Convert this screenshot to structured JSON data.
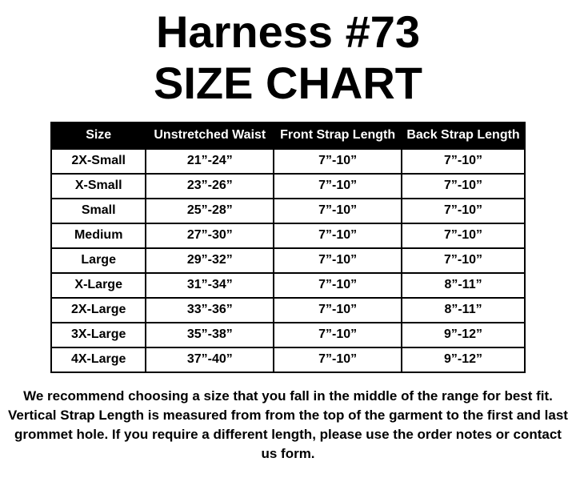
{
  "page": {
    "background_color": "#ffffff",
    "text_color": "#000000"
  },
  "title": {
    "line1": "Harness #73",
    "line2": "SIZE CHART"
  },
  "size_chart": {
    "header_bg_color": "#000000",
    "header_text_color": "#ffffff",
    "border_color": "#000000",
    "columns": [
      "Size",
      "Unstretched Waist",
      "Front Strap Length",
      "Back Strap Length"
    ],
    "rows": [
      [
        "2X-Small",
        "21”-24”",
        "7”-10”",
        "7”-10”"
      ],
      [
        "X-Small",
        "23”-26”",
        "7”-10”",
        "7”-10”"
      ],
      [
        "Small",
        "25”-28”",
        "7”-10”",
        "7”-10”"
      ],
      [
        "Medium",
        "27”-30”",
        "7”-10”",
        "7”-10”"
      ],
      [
        "Large",
        "29”-32”",
        "7”-10”",
        "7”-10”"
      ],
      [
        "X-Large",
        "31”-34”",
        "7”-10”",
        "8”-11”"
      ],
      [
        "2X-Large",
        "33”-36”",
        "7”-10”",
        "8”-11”"
      ],
      [
        "3X-Large",
        "35”-38”",
        "7”-10”",
        "9”-12”"
      ],
      [
        "4X-Large",
        "37”-40”",
        "7”-10”",
        "9”-12”"
      ]
    ]
  },
  "footnote": {
    "text": "We recommend choosing a size that you fall in the middle of the range for best fit. Vertical Strap Length is measured from from the top of the garment to the first and last grommet hole. If you require a different length, please use the order notes or contact us form."
  }
}
